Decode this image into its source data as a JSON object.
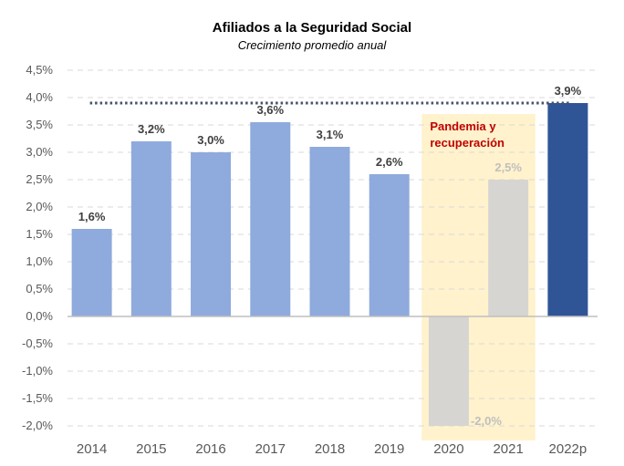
{
  "chart_data": {
    "type": "bar",
    "title": "Afiliados a la Seguridad Social",
    "subtitle": "Crecimiento promedio anual",
    "categories": [
      "2014",
      "2015",
      "2016",
      "2017",
      "2018",
      "2019",
      "2020",
      "2021",
      "2022p"
    ],
    "values": [
      1.6,
      3.2,
      3.0,
      3.55,
      3.1,
      2.6,
      -2.0,
      2.5,
      3.9
    ],
    "value_labels": [
      "1,6%",
      "3,2%",
      "3,0%",
      "3,6%",
      "3,1%",
      "2,6%",
      "-2,0%",
      "2,5%",
      "3,9%"
    ],
    "bar_groups": [
      "normal",
      "normal",
      "normal",
      "normal",
      "normal",
      "normal",
      "pandemic",
      "pandemic",
      "current"
    ],
    "ylim": [
      -2.0,
      4.5
    ],
    "yticks": [
      -2.0,
      -1.5,
      -1.0,
      -0.5,
      0.0,
      0.5,
      1.0,
      1.5,
      2.0,
      2.5,
      3.0,
      3.5,
      4.0,
      4.5
    ],
    "ytick_labels": [
      "-2,0%",
      "-1,5%",
      "-1,0%",
      "-0,5%",
      "0,0%",
      "0,5%",
      "1,0%",
      "1,5%",
      "2,0%",
      "2,5%",
      "3,0%",
      "3,5%",
      "4,0%",
      "4,5%"
    ],
    "reference_line": {
      "value": 3.9,
      "style": "dotted"
    },
    "highlight_region": {
      "categories": [
        "2020",
        "2021"
      ],
      "label_lines": [
        "Pandemia y",
        "recuperación"
      ]
    },
    "grid": true,
    "xlabel": "",
    "ylabel": ""
  },
  "colors": {
    "normal": "#8faadc",
    "pandemic": "#d6d5d1",
    "current": "#2f5597",
    "highlight_fill": "#fff2cc",
    "annotation": "#c00000",
    "label_dark": "#404040",
    "label_light": "#bfbfbf",
    "label_current": "#404040",
    "reference_line": "#44546a",
    "gridline": "#d9d9d9",
    "axis_line": "#bfbfbf"
  }
}
